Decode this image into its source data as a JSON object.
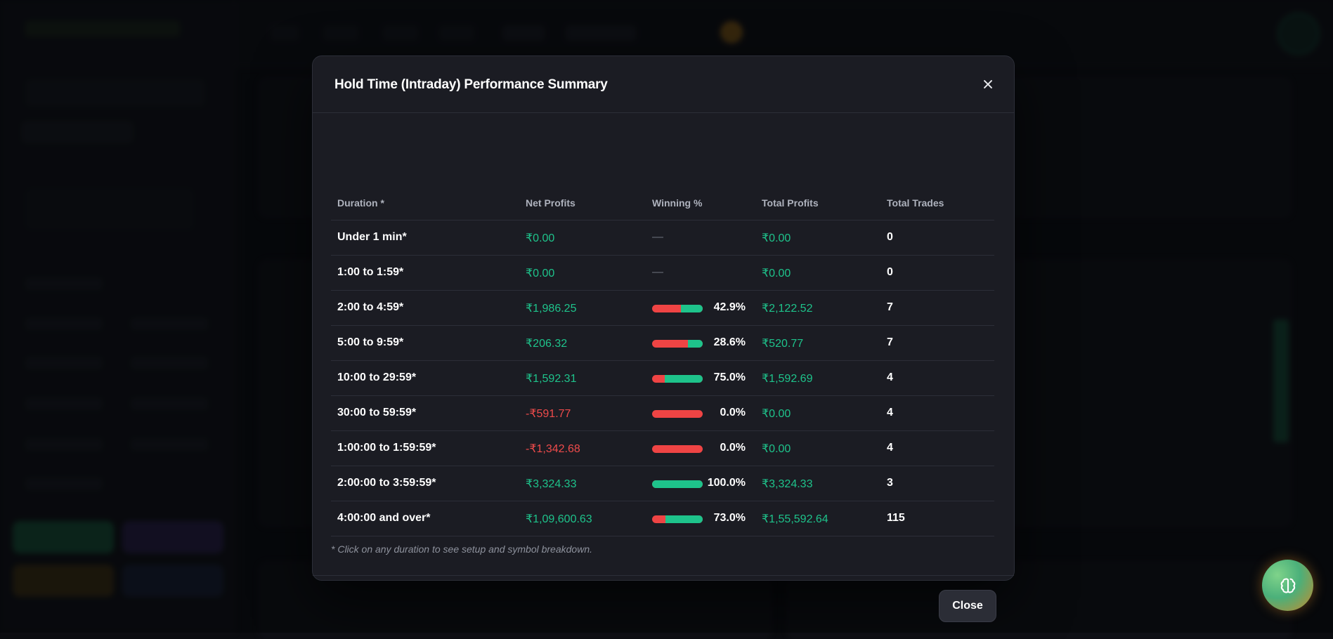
{
  "modal": {
    "title": "Hold Time (Intraday) Performance Summary",
    "close_label": "Close",
    "columns": {
      "duration": "Duration *",
      "net_profits": "Net Profits",
      "winning_pct": "Winning %",
      "total_profits": "Total Profits",
      "total_trades": "Total Trades"
    },
    "rows": [
      {
        "duration": "Under 1 min*",
        "net_profits": "₹0.00",
        "net_sign": "pos",
        "winning_pct": "—",
        "win_fraction": null,
        "total_profits": "₹0.00",
        "total_trades": "0"
      },
      {
        "duration": "1:00 to 1:59*",
        "net_profits": "₹0.00",
        "net_sign": "pos",
        "winning_pct": "—",
        "win_fraction": null,
        "total_profits": "₹0.00",
        "total_trades": "0"
      },
      {
        "duration": "2:00 to 4:59*",
        "net_profits": "₹1,986.25",
        "net_sign": "pos",
        "winning_pct": "42.9%",
        "win_fraction": 0.429,
        "total_profits": "₹2,122.52",
        "total_trades": "7"
      },
      {
        "duration": "5:00 to 9:59*",
        "net_profits": "₹206.32",
        "net_sign": "pos",
        "winning_pct": "28.6%",
        "win_fraction": 0.286,
        "total_profits": "₹520.77",
        "total_trades": "7"
      },
      {
        "duration": "10:00 to 29:59*",
        "net_profits": "₹1,592.31",
        "net_sign": "pos",
        "winning_pct": "75.0%",
        "win_fraction": 0.75,
        "total_profits": "₹1,592.69",
        "total_trades": "4"
      },
      {
        "duration": "30:00 to 59:59*",
        "net_profits": "-₹591.77",
        "net_sign": "neg",
        "winning_pct": "0.0%",
        "win_fraction": 0.0,
        "total_profits": "₹0.00",
        "total_trades": "4"
      },
      {
        "duration": "1:00:00 to 1:59:59*",
        "net_profits": "-₹1,342.68",
        "net_sign": "neg",
        "winning_pct": "0.0%",
        "win_fraction": 0.0,
        "total_profits": "₹0.00",
        "total_trades": "4"
      },
      {
        "duration": "2:00:00 to 3:59:59*",
        "net_profits": "₹3,324.33",
        "net_sign": "pos",
        "winning_pct": "100.0%",
        "win_fraction": 1.0,
        "total_profits": "₹3,324.33",
        "total_trades": "3"
      },
      {
        "duration": "4:00:00 and over*",
        "net_profits": "₹1,09,600.63",
        "net_sign": "pos",
        "winning_pct": "73.0%",
        "win_fraction": 0.73,
        "total_profits": "₹1,55,592.64",
        "total_trades": "115"
      }
    ],
    "footnote": "* Click on any duration to see setup and symbol breakdown."
  },
  "colors": {
    "positive": "#1ec38b",
    "negative": "#ef4b4b",
    "modal_bg": "#1b1c23"
  },
  "icons": {
    "close": "close-icon",
    "fab": "brain-icon"
  }
}
